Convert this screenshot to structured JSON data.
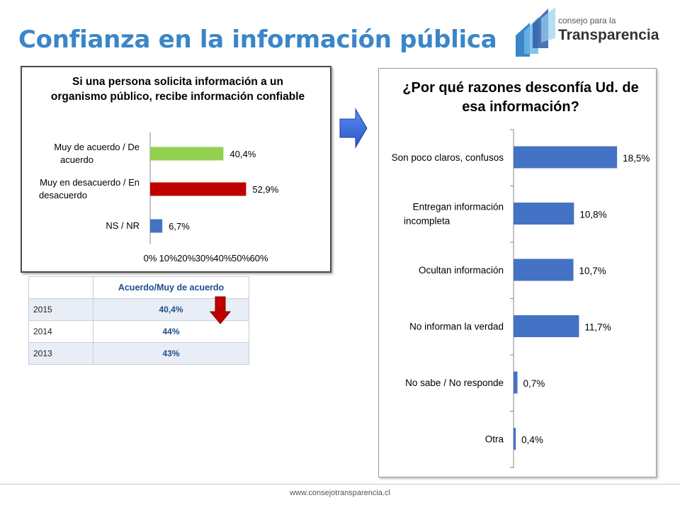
{
  "page": {
    "title": "Confianza en la información pública",
    "footer_url": "www.consejotransparencia.cl"
  },
  "logo": {
    "line1": "consejo para la",
    "line2": "Transparencia"
  },
  "colors": {
    "title": "#3a86c8",
    "bar_green": "#92d050",
    "bar_red": "#c00000",
    "bar_blue": "#4472c4",
    "arrow_blue": "#3a6fe0",
    "arrow_red": "#c00000"
  },
  "chart_data": [
    {
      "type": "bar",
      "orientation": "horizontal",
      "title": "Si una persona solicita información a un organismo público, recibe información confiable",
      "categories": [
        "Muy de acuerdo / De acuerdo",
        "Muy en desacuerdo / En desacuerdo",
        "NS / NR"
      ],
      "values": [
        40.4,
        52.9,
        6.7
      ],
      "value_labels": [
        "40,4%",
        "52,9%",
        "6,7%"
      ],
      "bar_colors": [
        "#92d050",
        "#c00000",
        "#4472c4"
      ],
      "xlim": [
        0,
        60
      ],
      "x_ticks": [
        "0%",
        "10%",
        "20%",
        "30%",
        "40%",
        "50%",
        "60%"
      ],
      "grid": false
    },
    {
      "type": "bar",
      "orientation": "horizontal",
      "title": "¿Por qué razones desconfía Ud. de esa información?",
      "categories": [
        "Son poco claros, confusos",
        "Entregan información incompleta",
        "Ocultan información",
        "No informan la verdad",
        "No sabe / No responde",
        "Otra"
      ],
      "values": [
        18.5,
        10.8,
        10.7,
        11.7,
        0.7,
        0.4
      ],
      "value_labels": [
        "18,5%",
        "10,8%",
        "10,7%",
        "11,7%",
        "0,7%",
        "0,4%"
      ],
      "bar_color": "#4472c4",
      "grid": false
    }
  ],
  "table": {
    "header": "Acuerdo/Muy de acuerdo",
    "rows": [
      {
        "year": "2015",
        "value": "40,4%"
      },
      {
        "year": "2014",
        "value": "44%"
      },
      {
        "year": "2013",
        "value": "43%"
      }
    ]
  }
}
